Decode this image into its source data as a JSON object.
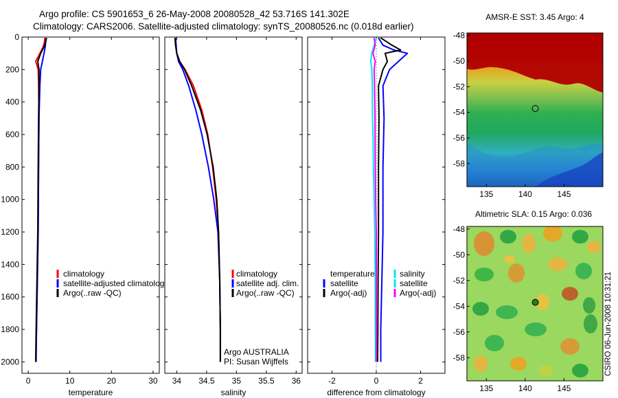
{
  "header": {
    "line1": "Argo profile: CS 5901653_6 26-May-2008 20080528_42 53.716S 141.302E",
    "line2": "Climatology: CARS2006. Satellite-adjusted climatology: synTS_20080526.nc (0.018d earlier)"
  },
  "credit": "CSIRO 06-Jun-2008 10:31:21",
  "colors": {
    "red": "#ff0000",
    "blue": "#0000ff",
    "black": "#000000",
    "cyan": "#00e5ee",
    "magenta": "#ff00ff"
  },
  "chart_data": [
    {
      "type": "line",
      "id": "temperature",
      "xlabel": "temperature",
      "ylabel": "",
      "xlim": [
        -1.5,
        31.5
      ],
      "ylim": [
        0,
        2070
      ],
      "y_reversed": true,
      "xticks": [
        0,
        10,
        20,
        30
      ],
      "yticks": [
        0,
        200,
        400,
        600,
        800,
        1000,
        1200,
        1400,
        1600,
        1800,
        2000
      ],
      "legend": [
        "climatology",
        "satellite-adjusted climatology",
        "Argo(..raw -QC)"
      ],
      "series": [
        {
          "name": "climatology",
          "color": "red",
          "x": [
            4.0,
            3.9,
            3.6,
            2.8,
            1.8,
            2.4,
            2.5,
            2.6,
            2.5,
            2.4,
            2.2,
            2.0,
            1.8
          ],
          "y": [
            5,
            30,
            60,
            100,
            150,
            200,
            300,
            500,
            800,
            1200,
            1500,
            1800,
            2000
          ]
        },
        {
          "name": "satellite-adjusted climatology",
          "color": "blue",
          "x": [
            4.3,
            4.2,
            4.1,
            3.8,
            3.4,
            3.0,
            2.8,
            2.6,
            2.5,
            2.4,
            2.2,
            2.0,
            1.9
          ],
          "y": [
            5,
            30,
            60,
            100,
            150,
            200,
            300,
            500,
            800,
            1200,
            1500,
            1800,
            2000
          ]
        },
        {
          "name": "Argo(..raw -QC)",
          "color": "black",
          "x": [
            4.4,
            4.2,
            3.8,
            3.0,
            2.3,
            2.6,
            2.6,
            2.5,
            2.4,
            2.3,
            2.1,
            1.9,
            1.8
          ],
          "y": [
            5,
            30,
            60,
            100,
            150,
            200,
            300,
            500,
            800,
            1200,
            1500,
            1800,
            2000
          ]
        }
      ]
    },
    {
      "type": "line",
      "id": "salinity",
      "xlabel": "salinity",
      "xlim": [
        33.8,
        36.1
      ],
      "ylim": [
        0,
        2070
      ],
      "y_reversed": true,
      "xticks": [
        34,
        34.5,
        35,
        35.5,
        36
      ],
      "yticks": [
        0,
        200,
        400,
        600,
        800,
        1000,
        1200,
        1400,
        1600,
        1800,
        2000
      ],
      "legend": [
        "climatology",
        "satellite adj. clim.",
        "Argo(..raw -QC)"
      ],
      "annotations": [
        "Argo AUSTRALIA",
        "PI: Susan Wijffels"
      ],
      "series": [
        {
          "name": "climatology",
          "color": "red",
          "x": [
            33.97,
            33.98,
            34.0,
            34.05,
            34.14,
            34.28,
            34.42,
            34.52,
            34.6,
            34.66,
            34.7,
            34.72,
            34.73,
            34.73
          ],
          "y": [
            5,
            50,
            100,
            150,
            200,
            300,
            450,
            600,
            800,
            1000,
            1200,
            1500,
            1800,
            2000
          ]
        },
        {
          "name": "satellite adj. clim.",
          "color": "blue",
          "x": [
            33.98,
            33.99,
            34.0,
            34.03,
            34.1,
            34.2,
            34.32,
            34.42,
            34.53,
            34.62,
            34.69,
            34.72,
            34.73,
            34.73
          ],
          "y": [
            5,
            50,
            100,
            150,
            200,
            300,
            450,
            600,
            800,
            1000,
            1200,
            1500,
            1800,
            2000
          ]
        },
        {
          "name": "Argo(..raw -QC)",
          "color": "black",
          "x": [
            33.97,
            33.98,
            34.0,
            34.05,
            34.13,
            34.25,
            34.4,
            34.51,
            34.61,
            34.67,
            34.7,
            34.72,
            34.73,
            34.73
          ],
          "y": [
            5,
            50,
            100,
            150,
            200,
            300,
            450,
            600,
            800,
            1000,
            1200,
            1500,
            1800,
            2000
          ]
        }
      ]
    },
    {
      "type": "line",
      "id": "difference",
      "xlabel": "difference from climatology",
      "xlim": [
        -3.1,
        3.1
      ],
      "ylim": [
        0,
        2070
      ],
      "y_reversed": true,
      "xticks": [
        -2,
        0,
        2
      ],
      "yticks": [
        0,
        200,
        400,
        600,
        800,
        1000,
        1200,
        1400,
        1600,
        1800,
        2000
      ],
      "legend_temperature_title": "temperature",
      "legend_salinity_title": "salinity",
      "legend_temperature": [
        "satellite",
        "Argo(-adj)"
      ],
      "legend_salinity": [
        "satellite",
        "salinity",
        "Argo(-adj)"
      ],
      "series": [
        {
          "name": "temperature satellite",
          "color": "blue",
          "x": [
            0.1,
            0.3,
            0.8,
            1.4,
            1.0,
            0.6,
            0.3,
            0.35,
            0.3,
            0.3,
            0.25,
            0.2,
            0.2
          ],
          "y": [
            5,
            50,
            80,
            100,
            150,
            200,
            300,
            500,
            800,
            1200,
            1500,
            1800,
            2000
          ]
        },
        {
          "name": "temperature Argo(-adj)",
          "color": "black",
          "x": [
            0.2,
            0.7,
            1.1,
            0.4,
            0.5,
            0.3,
            0.1,
            0.12,
            0.1,
            0.1,
            0.08,
            0.07,
            0.06
          ],
          "y": [
            5,
            50,
            80,
            100,
            150,
            200,
            300,
            500,
            800,
            1200,
            1500,
            1800,
            2000
          ]
        },
        {
          "name": "salinity satellite",
          "color": "cyan",
          "x": [
            0.0,
            -0.1,
            -0.2,
            -0.25,
            -0.2,
            -0.18,
            -0.17,
            -0.15,
            -0.13,
            -0.1,
            -0.07,
            -0.05,
            -0.04
          ],
          "y": [
            5,
            50,
            100,
            150,
            200,
            300,
            500,
            600,
            800,
            1000,
            1200,
            1500,
            2000
          ]
        },
        {
          "name": "salinity Argo(-adj)",
          "color": "magenta",
          "x": [
            -0.1,
            -0.05,
            -0.15,
            -0.05,
            -0.1,
            -0.08,
            -0.06,
            -0.05,
            -0.03,
            0.0,
            0.0,
            0.0
          ],
          "y": [
            5,
            50,
            100,
            150,
            200,
            300,
            500,
            800,
            1000,
            1200,
            1500,
            2000
          ]
        }
      ]
    },
    {
      "type": "heatmap",
      "id": "sst-map",
      "title": "AMSR-E SST: 3.45 Argo: 4",
      "xlim": [
        132.5,
        150
      ],
      "ylim": [
        -59.8,
        -47.8
      ],
      "xticks": [
        135,
        140,
        145
      ],
      "yticks": [
        -48,
        -50,
        -52,
        -54,
        -56,
        -58
      ],
      "marker": {
        "lon": 141.3,
        "lat": -53.7
      }
    },
    {
      "type": "heatmap",
      "id": "sla-map",
      "title": "Altimetric SLA: 0.15 Argo: 0.036",
      "xlim": [
        132.5,
        150
      ],
      "ylim": [
        -59.8,
        -47.8
      ],
      "xticks": [
        135,
        140,
        145
      ],
      "yticks": [
        -48,
        -50,
        -52,
        -54,
        -56,
        -58
      ],
      "marker": {
        "lon": 141.3,
        "lat": -53.7
      }
    }
  ]
}
